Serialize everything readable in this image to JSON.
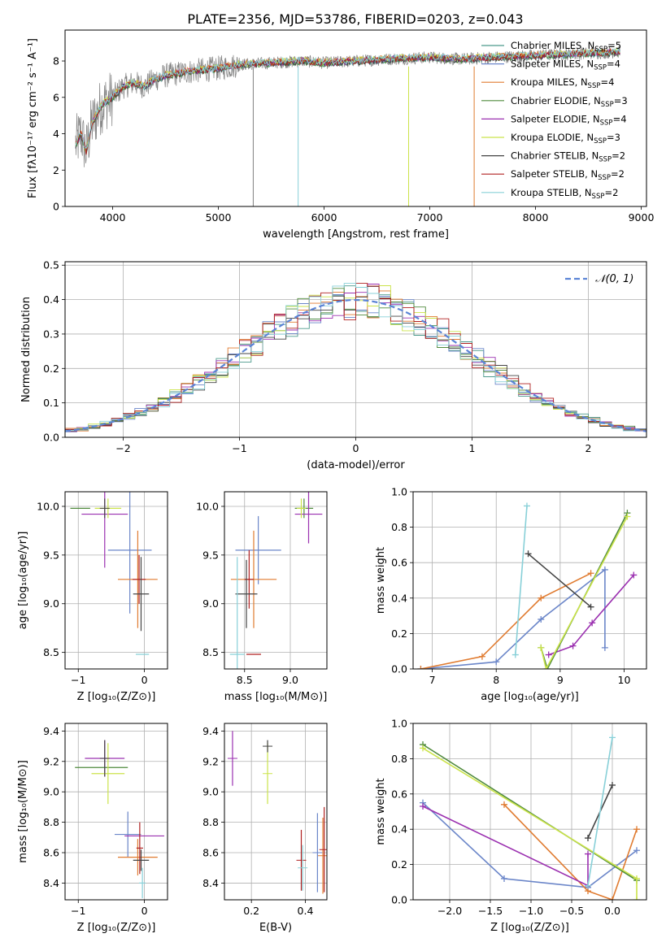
{
  "figure_title": "PLATE=2356, MJD=53786, FIBERID=0203, z=0.043",
  "chart_data": [
    {
      "id": "spectrum",
      "type": "line",
      "xlabel": "wavelength [Angstrom, rest frame]",
      "ylabel": "Flux [fλ10⁻¹⁷ erg cm⁻² s⁻¹ A⁻¹]",
      "xlim": [
        3550,
        9050
      ],
      "ylim": [
        0,
        9.7
      ],
      "xticks": [
        4000,
        5000,
        6000,
        7000,
        8000,
        9000
      ],
      "yticks": [
        0,
        2,
        4,
        6,
        8
      ],
      "legend_position": "top-right",
      "observed_x": [
        3650,
        3700,
        3750,
        3800,
        3900,
        4000,
        4100,
        4200,
        4300,
        4400,
        4500,
        4700,
        5000,
        5200,
        5500,
        5800,
        6000,
        6300,
        6600,
        7000,
        7300,
        7600,
        8000,
        8400,
        8800
      ],
      "observed_y": [
        3.4,
        4.0,
        3.0,
        4.5,
        5.6,
        6.0,
        6.6,
        6.8,
        6.6,
        7.0,
        7.2,
        7.4,
        7.6,
        7.8,
        7.9,
        8.0,
        7.9,
        8.0,
        8.1,
        8.2,
        8.1,
        8.2,
        8.3,
        8.4,
        8.5
      ],
      "series": [
        {
          "name": "Chabrier MILES, N_SSP=5",
          "color": "#4c9a8c"
        },
        {
          "name": "Salpeter MILES, N_SSP=4",
          "color": "#6b86c9"
        },
        {
          "name": "Kroupa MILES, N_SSP=4",
          "color": "#e07b30"
        },
        {
          "name": "Chabrier ELODIE, N_SSP=3",
          "color": "#4f8a3c"
        },
        {
          "name": "Salpeter ELODIE, N_SSP=4",
          "color": "#9b30b0"
        },
        {
          "name": "Kroupa ELODIE, N_SSP=3",
          "color": "#cbe34a"
        },
        {
          "name": "Chabrier STELIB, N_SSP=2",
          "color": "#444444"
        },
        {
          "name": "Salpeter STELIB, N_SSP=2",
          "color": "#b02020"
        },
        {
          "name": "Kroupa STELIB, N_SSP=2",
          "color": "#88d0d8"
        }
      ],
      "legend_labels": [
        {
          "main": "Chabrier MILES, N",
          "sub": "SSP",
          "tail": "=5"
        },
        {
          "main": "Salpeter MILES, N",
          "sub": "SSP",
          "tail": "=4"
        },
        {
          "main": "Kroupa MILES, N",
          "sub": "SSP",
          "tail": "=4"
        },
        {
          "main": "Chabrier ELODIE, N",
          "sub": "SSP",
          "tail": "=3"
        },
        {
          "main": "Salpeter ELODIE, N",
          "sub": "SSP",
          "tail": "=4"
        },
        {
          "main": "Kroupa ELODIE, N",
          "sub": "SSP",
          "tail": "=3"
        },
        {
          "main": "Chabrier STELIB, N",
          "sub": "SSP",
          "tail": "=2"
        },
        {
          "main": "Salpeter STELIB, N",
          "sub": "SSP",
          "tail": "=2"
        },
        {
          "main": "Kroupa STELIB, N",
          "sub": "SSP",
          "tail": "=2"
        }
      ]
    },
    {
      "id": "residuals",
      "type": "line",
      "xlabel": "(data-model)/error",
      "ylabel": "Normed distribution",
      "xlim": [
        -2.5,
        2.5
      ],
      "ylim": [
        0,
        0.51
      ],
      "xticks": [
        -2,
        -1,
        0,
        1,
        2
      ],
      "yticks": [
        0.0,
        0.1,
        0.2,
        0.3,
        0.4,
        0.5
      ],
      "grid": true,
      "legend_position": "top-right",
      "gaussian_label": "𝒩(0, 1)",
      "gaussian_color": "#5b84d6",
      "bin_width": 0.1
    },
    {
      "id": "age_vs_Z",
      "type": "scatter",
      "xlabel": "Z [log₁₀(Z/Z⊙)]",
      "ylabel": "age  [log₁₀(age/yr)]",
      "xlim": [
        -1.2,
        0.35
      ],
      "ylim": [
        8.33,
        10.15
      ],
      "xticks": [
        -1,
        0
      ],
      "yticks": [
        8.5,
        9.0,
        9.5,
        10.0
      ],
      "grid": true,
      "points": [
        {
          "x": -0.97,
          "y": 9.98,
          "xerr": 0.15,
          "yerr": 0.0,
          "color": "#4f8a3c"
        },
        {
          "x": -0.6,
          "y": 9.92,
          "xerr": 0.35,
          "yerr": 0.55,
          "color": "#9b30b0"
        },
        {
          "x": -0.55,
          "y": 9.98,
          "xerr": 0.2,
          "yerr": 0.1,
          "color": "#cbe34a"
        },
        {
          "x": -0.6,
          "y": 9.98,
          "xerr": 0.0,
          "yerr": 0.1,
          "color": "#444444"
        },
        {
          "x": -0.22,
          "y": 9.55,
          "xerr": 0.33,
          "yerr": 0.65,
          "color": "#6b86c9"
        },
        {
          "x": -0.1,
          "y": 9.25,
          "xerr": 0.3,
          "yerr": 0.5,
          "color": "#e07b30"
        },
        {
          "x": -0.08,
          "y": 9.25,
          "xerr": 0.1,
          "yerr": 0.25,
          "color": "#b02020"
        },
        {
          "x": -0.05,
          "y": 9.1,
          "xerr": 0.12,
          "yerr": 0.38,
          "color": "#444444"
        },
        {
          "x": -0.03,
          "y": 8.48,
          "xerr": 0.1,
          "yerr": 0.0,
          "color": "#88d0d8"
        }
      ]
    },
    {
      "id": "age_vs_mass",
      "type": "scatter",
      "xlabel": "mass [log₁₀(M/M⊙)]",
      "ylabel": "",
      "xlim": [
        8.28,
        9.4
      ],
      "ylim": [
        8.33,
        10.15
      ],
      "xticks": [
        8.5,
        9.0
      ],
      "yticks": [
        8.5,
        9.0,
        9.5,
        10.0
      ],
      "grid": true,
      "points": [
        {
          "x": 9.15,
          "y": 9.98,
          "xerr": 0.1,
          "yerr": 0.1,
          "color": "#4f8a3c"
        },
        {
          "x": 9.2,
          "y": 9.92,
          "xerr": 0.15,
          "yerr": 0.3,
          "color": "#9b30b0"
        },
        {
          "x": 9.12,
          "y": 9.98,
          "xerr": 0.05,
          "yerr": 0.1,
          "color": "#cbe34a"
        },
        {
          "x": 8.65,
          "y": 9.55,
          "xerr": 0.25,
          "yerr": 0.35,
          "color": "#6b86c9"
        },
        {
          "x": 8.6,
          "y": 9.25,
          "xerr": 0.25,
          "yerr": 0.5,
          "color": "#e07b30"
        },
        {
          "x": 8.55,
          "y": 9.25,
          "xerr": 0.05,
          "yerr": 0.3,
          "color": "#b02020"
        },
        {
          "x": 8.52,
          "y": 9.1,
          "xerr": 0.12,
          "yerr": 0.35,
          "color": "#444444"
        },
        {
          "x": 8.42,
          "y": 8.48,
          "xerr": 0.08,
          "yerr": 1.0,
          "color": "#88d0d8"
        },
        {
          "x": 8.6,
          "y": 8.48,
          "xerr": 0.08,
          "yerr": 0.0,
          "color": "#b02020"
        }
      ]
    },
    {
      "id": "massweight_vs_age",
      "type": "line",
      "xlabel": "age  [log₁₀(age/yr)]",
      "ylabel": "mass weight",
      "xlim": [
        6.7,
        10.35
      ],
      "ylim": [
        0,
        1.0
      ],
      "xticks": [
        7,
        8,
        9,
        10
      ],
      "yticks": [
        0.0,
        0.2,
        0.4,
        0.6,
        0.8,
        1.0
      ],
      "grid": true,
      "series": [
        {
          "color": "#6b86c9",
          "x": [
            6.82,
            8.0,
            8.7,
            9.7,
            9.7
          ],
          "y": [
            0.0,
            0.04,
            0.28,
            0.56,
            0.12
          ]
        },
        {
          "color": "#e07b30",
          "x": [
            6.82,
            7.78,
            8.7,
            9.48
          ],
          "y": [
            0.0,
            0.07,
            0.4,
            0.54
          ]
        },
        {
          "color": "#9b30b0",
          "x": [
            8.82,
            9.2,
            9.5,
            10.15
          ],
          "y": [
            0.08,
            0.13,
            0.26,
            0.53
          ]
        },
        {
          "color": "#4f8a3c",
          "x": [
            8.7,
            8.8,
            10.05
          ],
          "y": [
            0.12,
            0.0,
            0.88
          ]
        },
        {
          "color": "#cbe34a",
          "x": [
            8.7,
            8.78,
            10.05
          ],
          "y": [
            0.12,
            0.0,
            0.86
          ]
        },
        {
          "color": "#444444",
          "x": [
            8.5,
            9.48
          ],
          "y": [
            0.65,
            0.35
          ]
        },
        {
          "color": "#88d0d8",
          "x": [
            8.3,
            8.48
          ],
          "y": [
            0.08,
            0.92
          ]
        }
      ]
    },
    {
      "id": "mass_vs_Z",
      "type": "scatter",
      "xlabel": "Z [log₁₀(Z/Z⊙)]",
      "ylabel": "mass [log₁₀(M/M⊙)]",
      "xlim": [
        -1.2,
        0.35
      ],
      "ylim": [
        8.29,
        9.45
      ],
      "xticks": [
        -1,
        0
      ],
      "yticks": [
        8.4,
        8.6,
        8.8,
        9.0,
        9.2,
        9.4
      ],
      "grid": true,
      "points": [
        {
          "x": -0.6,
          "y": 9.22,
          "xerr": 0.3,
          "yerr": 0.12,
          "color": "#9b30b0"
        },
        {
          "x": -0.65,
          "y": 9.16,
          "xerr": 0.4,
          "yerr": 0.0,
          "color": "#4f8a3c"
        },
        {
          "x": -0.55,
          "y": 9.12,
          "xerr": 0.25,
          "yerr": 0.2,
          "color": "#cbe34a"
        },
        {
          "x": -0.6,
          "y": 9.22,
          "xerr": 0.0,
          "yerr": 0.12,
          "color": "#444444"
        },
        {
          "x": -0.25,
          "y": 8.72,
          "xerr": 0.2,
          "yerr": 0.15,
          "color": "#6b86c9"
        },
        {
          "x": 0.0,
          "y": 8.71,
          "xerr": 0.3,
          "yerr": 0.0,
          "color": "#9b30b0"
        },
        {
          "x": -0.1,
          "y": 8.57,
          "xerr": 0.3,
          "yerr": 0.12,
          "color": "#e07b30"
        },
        {
          "x": -0.07,
          "y": 8.63,
          "xerr": 0.05,
          "yerr": 0.17,
          "color": "#b02020"
        },
        {
          "x": -0.05,
          "y": 8.55,
          "xerr": 0.12,
          "yerr": 0.07,
          "color": "#444444"
        },
        {
          "x": -0.03,
          "y": 8.4,
          "xerr": 0.05,
          "yerr": 0.1,
          "color": "#88d0d8"
        }
      ]
    },
    {
      "id": "mass_vs_ebv",
      "type": "scatter",
      "xlabel": "E(B-V)",
      "ylabel": "",
      "xlim": [
        0.1,
        0.48
      ],
      "ylim": [
        8.29,
        9.45
      ],
      "xticks": [
        0.2,
        0.4
      ],
      "yticks": [
        8.4,
        8.6,
        8.8,
        9.0,
        9.2,
        9.4
      ],
      "grid": true,
      "points": [
        {
          "x": 0.13,
          "y": 9.22,
          "xerr": 0,
          "yerr": 0.18,
          "color": "#9b30b0"
        },
        {
          "x": 0.26,
          "y": 9.12,
          "xerr": 0,
          "yerr": 0.2,
          "color": "#cbe34a"
        },
        {
          "x": 0.26,
          "y": 9.3,
          "xerr": 0,
          "yerr": 0.04,
          "color": "#444444"
        },
        {
          "x": 0.385,
          "y": 8.55,
          "xerr": 0,
          "yerr": 0.2,
          "color": "#b02020"
        },
        {
          "x": 0.39,
          "y": 8.5,
          "xerr": 0,
          "yerr": 0.15,
          "color": "#88d0d8"
        },
        {
          "x": 0.445,
          "y": 8.6,
          "xerr": 0,
          "yerr": 0.26,
          "color": "#6b86c9"
        },
        {
          "x": 0.465,
          "y": 8.58,
          "xerr": 0,
          "yerr": 0.25,
          "color": "#e07b30"
        },
        {
          "x": 0.47,
          "y": 8.62,
          "xerr": 0,
          "yerr": 0.28,
          "color": "#b02020"
        }
      ]
    },
    {
      "id": "massweight_vs_Z",
      "type": "line",
      "xlabel": "Z [log₁₀(Z/Z⊙)]",
      "ylabel": "mass weight",
      "xlim": [
        -2.45,
        0.42
      ],
      "ylim": [
        0,
        1.0
      ],
      "xticks": [
        -2.0,
        -1.5,
        -1.0,
        -0.5,
        0.0
      ],
      "yticks": [
        0.0,
        0.2,
        0.4,
        0.6,
        0.8,
        1.0
      ],
      "grid": true,
      "series": [
        {
          "color": "#6b86c9",
          "x": [
            -2.33,
            -1.33,
            -0.3,
            0.3
          ],
          "y": [
            0.55,
            0.12,
            0.07,
            0.28
          ]
        },
        {
          "color": "#e07b30",
          "x": [
            -1.33,
            -0.3,
            0.0,
            0.3
          ],
          "y": [
            0.54,
            0.05,
            0.0,
            0.4
          ]
        },
        {
          "color": "#9b30b0",
          "x": [
            -2.33,
            -0.3,
            -0.3
          ],
          "y": [
            0.53,
            0.08,
            0.26
          ]
        },
        {
          "color": "#4f8a3c",
          "x": [
            -2.33,
            0.3
          ],
          "y": [
            0.88,
            0.11
          ]
        },
        {
          "color": "#cbe34a",
          "x": [
            -2.33,
            0.3,
            0.3
          ],
          "y": [
            0.86,
            0.12,
            0.0
          ]
        },
        {
          "color": "#444444",
          "x": [
            -0.3,
            0.0
          ],
          "y": [
            0.35,
            0.65
          ]
        },
        {
          "color": "#88d0d8",
          "x": [
            -0.3,
            0.0
          ],
          "y": [
            0.08,
            0.92
          ]
        }
      ]
    }
  ]
}
